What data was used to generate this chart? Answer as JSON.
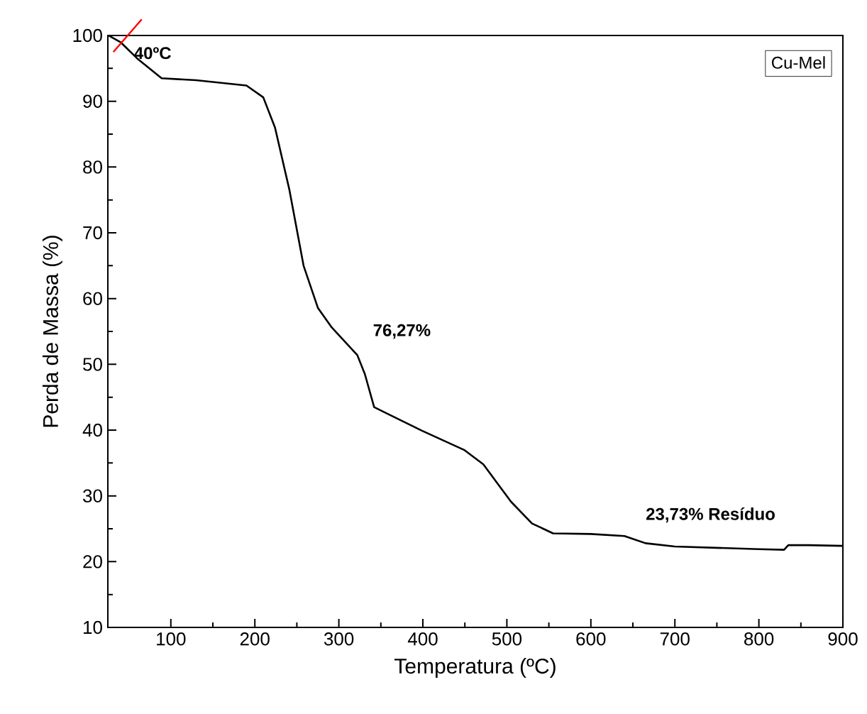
{
  "chart_data": {
    "type": "line",
    "xlabel": "Temperatura (ºC)",
    "ylabel": "Perda de Massa (%)",
    "xlim": [
      25,
      900
    ],
    "ylim": [
      10,
      100
    ],
    "xticks": [
      100,
      200,
      300,
      400,
      500,
      600,
      700,
      800,
      900
    ],
    "yticks": [
      10,
      20,
      30,
      40,
      50,
      60,
      70,
      80,
      90,
      100
    ],
    "grid": false,
    "legend": "top right",
    "marker": "none",
    "line_style": "solid",
    "series": [
      {
        "name": "Cu-Mel",
        "color": "#000000",
        "x": [
          26,
          40,
          60,
          89,
          130,
          190,
          210,
          224,
          241,
          258,
          275,
          291,
          322,
          331,
          342,
          353,
          399,
          449,
          472,
          505,
          530,
          555,
          600,
          640,
          665,
          700,
          750,
          800,
          830,
          835,
          860,
          900
        ],
        "values": [
          100,
          99,
          96.5,
          93.5,
          93.2,
          92.4,
          90.6,
          86,
          76.6,
          65,
          58.6,
          55.7,
          51.4,
          48.5,
          43.5,
          42.8,
          39.9,
          37,
          34.8,
          29.1,
          25.8,
          24.3,
          24.2,
          23.9,
          22.8,
          22.3,
          22.1,
          21.9,
          21.8,
          22.5,
          22.5,
          22.4
        ]
      }
    ],
    "annotations": [
      {
        "text": "40ºC",
        "x": 40,
        "y": 99
      },
      "76,27%",
      "23,73% Resíduo"
    ]
  }
}
